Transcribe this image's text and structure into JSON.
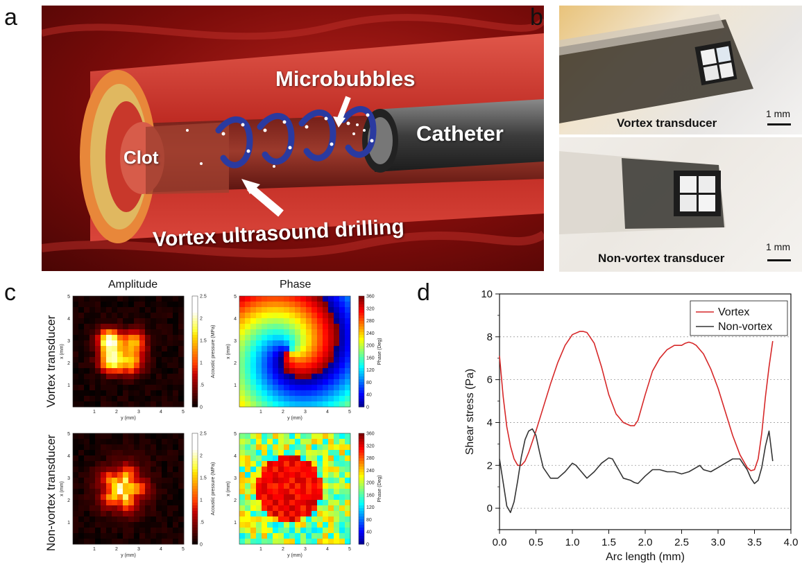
{
  "panels": {
    "a": {
      "letter": "a",
      "labels": {
        "microbubbles": "Microbubbles",
        "catheter": "Catheter",
        "clot": "Clot",
        "drilling": "Vortex ultrasound drilling"
      }
    },
    "b": {
      "letter": "b",
      "top_caption": "Vortex transducer",
      "bottom_caption": "Non-vortex transducer",
      "scale_label": "1 mm"
    },
    "c": {
      "letter": "c",
      "col_titles": [
        "Amplitude",
        "Phase"
      ],
      "row_labels": [
        "Vortex transducer",
        "Non-vortex transducer"
      ],
      "axis_x_label": "y (mm)",
      "axis_y_label": "x (mm)",
      "axis_ticks": [
        "1",
        "2",
        "3",
        "4",
        "5"
      ],
      "amplitude_colorbar": {
        "title": "Acoustic pressure (MPa)",
        "ticks": [
          "0",
          ".5",
          "1",
          "1.5",
          "2",
          "2.5"
        ]
      },
      "phase_colorbar": {
        "title": "Phase (Deg)",
        "ticks": [
          "0",
          "40",
          "80",
          "120",
          "160",
          "200",
          "240",
          "280",
          "320",
          "360"
        ]
      }
    },
    "d": {
      "letter": "d"
    }
  },
  "chart_data": {
    "type": "line",
    "xlabel": "Arc length (mm)",
    "ylabel": "Shear stress (Pa)",
    "xlim": [
      0.0,
      4.0
    ],
    "ylim": [
      -1,
      10
    ],
    "xticks": [
      "0.0",
      "0.5",
      "1.0",
      "1.5",
      "2.0",
      "2.5",
      "3.0",
      "3.5",
      "4.0"
    ],
    "yticks": [
      "0",
      "2",
      "4",
      "6",
      "8",
      "10"
    ],
    "grid": "horizontal dashed",
    "legend_position": "top-right",
    "series": [
      {
        "name": "Vortex",
        "color": "#d62728",
        "x": [
          0.0,
          0.05,
          0.1,
          0.15,
          0.2,
          0.25,
          0.3,
          0.35,
          0.4,
          0.5,
          0.6,
          0.7,
          0.8,
          0.9,
          1.0,
          1.1,
          1.15,
          1.2,
          1.3,
          1.4,
          1.5,
          1.6,
          1.7,
          1.8,
          1.85,
          1.9,
          2.0,
          2.1,
          2.2,
          2.3,
          2.4,
          2.5,
          2.55,
          2.6,
          2.65,
          2.7,
          2.8,
          2.9,
          3.0,
          3.1,
          3.2,
          3.3,
          3.4,
          3.45,
          3.5,
          3.55,
          3.6,
          3.65,
          3.7,
          3.75
        ],
        "y": [
          7.1,
          5.2,
          3.8,
          2.9,
          2.3,
          2.0,
          2.0,
          2.2,
          2.6,
          3.6,
          4.7,
          5.8,
          6.8,
          7.6,
          8.1,
          8.25,
          8.25,
          8.2,
          7.7,
          6.6,
          5.3,
          4.4,
          4.0,
          3.85,
          3.85,
          4.1,
          5.3,
          6.4,
          7.0,
          7.4,
          7.6,
          7.6,
          7.7,
          7.75,
          7.7,
          7.6,
          7.2,
          6.5,
          5.6,
          4.5,
          3.4,
          2.5,
          1.9,
          1.75,
          1.8,
          2.3,
          3.5,
          5.2,
          6.6,
          7.8
        ]
      },
      {
        "name": "Non-vortex",
        "color": "#333333",
        "x": [
          0.0,
          0.05,
          0.1,
          0.15,
          0.2,
          0.25,
          0.3,
          0.35,
          0.4,
          0.45,
          0.5,
          0.55,
          0.6,
          0.7,
          0.8,
          0.9,
          1.0,
          1.05,
          1.1,
          1.2,
          1.3,
          1.4,
          1.5,
          1.55,
          1.6,
          1.7,
          1.8,
          1.85,
          1.9,
          2.0,
          2.1,
          2.2,
          2.3,
          2.4,
          2.5,
          2.6,
          2.7,
          2.75,
          2.8,
          2.9,
          3.0,
          3.1,
          3.2,
          3.3,
          3.4,
          3.45,
          3.5,
          3.55,
          3.6,
          3.65,
          3.7,
          3.75
        ],
        "y": [
          2.3,
          1.2,
          0.1,
          -0.2,
          0.3,
          1.3,
          2.4,
          3.2,
          3.6,
          3.7,
          3.4,
          2.6,
          1.9,
          1.4,
          1.4,
          1.7,
          2.1,
          2.0,
          1.8,
          1.4,
          1.7,
          2.1,
          2.35,
          2.3,
          2.0,
          1.4,
          1.3,
          1.2,
          1.15,
          1.5,
          1.8,
          1.8,
          1.7,
          1.7,
          1.6,
          1.7,
          1.9,
          2.0,
          1.8,
          1.7,
          1.9,
          2.1,
          2.3,
          2.3,
          1.8,
          1.4,
          1.15,
          1.3,
          1.9,
          2.9,
          3.6,
          2.2
        ]
      }
    ]
  }
}
